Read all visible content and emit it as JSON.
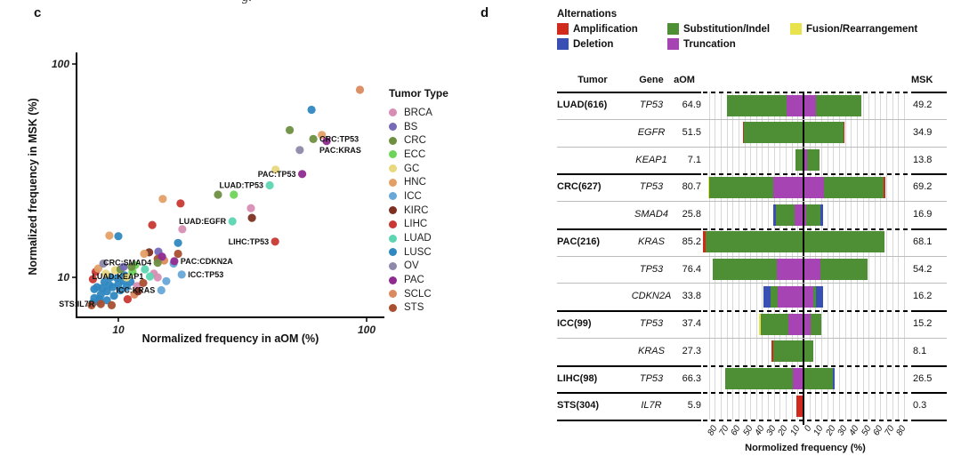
{
  "artifact": {
    "text": "g."
  },
  "panel_c": {
    "label": "c",
    "x_title": "Normalized frequency in aOM (%)",
    "y_title": "Normalized frequency in MSK (%)",
    "legend_title": "Tumor Type",
    "tumor_types": [
      {
        "name": "BRCA",
        "color": "#d88eb4"
      },
      {
        "name": "BS",
        "color": "#7569b8"
      },
      {
        "name": "CRC",
        "color": "#6e8f40"
      },
      {
        "name": "ECC",
        "color": "#6ed457"
      },
      {
        "name": "GC",
        "color": "#e9d87e"
      },
      {
        "name": "HNC",
        "color": "#e3a066"
      },
      {
        "name": "ICC",
        "color": "#68a8d8"
      },
      {
        "name": "KIRC",
        "color": "#7d3020"
      },
      {
        "name": "LIHC",
        "color": "#c93832"
      },
      {
        "name": "LUAD",
        "color": "#5cd6b2"
      },
      {
        "name": "LUSC",
        "color": "#3088c0"
      },
      {
        "name": "OV",
        "color": "#8e88ab"
      },
      {
        "name": "PAC",
        "color": "#8f2b90"
      },
      {
        "name": "SCLC",
        "color": "#db8a5e"
      },
      {
        "name": "STS",
        "color": "#a94f30"
      }
    ],
    "chart_data": {
      "type": "scatter",
      "x_scale": "log",
      "y_scale": "log",
      "x_range": [
        6.8,
        118
      ],
      "y_range": [
        6.5,
        110
      ],
      "x_ticks": [
        10,
        100
      ],
      "y_ticks": [
        100,
        10
      ],
      "grid": false,
      "legend_position": "right",
      "points": [
        {
          "tumor": "LUSC",
          "x": 8.0,
          "y": 8.0
        },
        {
          "tumor": "LUSC",
          "x": 8.5,
          "y": 8.3
        },
        {
          "tumor": "LUSC",
          "x": 9.0,
          "y": 8.6
        },
        {
          "tumor": "LUSC",
          "x": 9.5,
          "y": 9.0
        },
        {
          "tumor": "LUSC",
          "x": 10.0,
          "y": 9.3
        },
        {
          "tumor": "LUSC",
          "x": 10.5,
          "y": 9.6
        },
        {
          "tumor": "LUSC",
          "x": 8.2,
          "y": 9.0
        },
        {
          "tumor": "LUSC",
          "x": 8.8,
          "y": 9.5
        },
        {
          "tumor": "LUSC",
          "x": 9.3,
          "y": 10.0
        },
        {
          "tumor": "LUSC",
          "x": 8.0,
          "y": 8.8
        },
        {
          "tumor": "LUSC",
          "x": 8.4,
          "y": 7.9
        },
        {
          "tumor": "LUSC",
          "x": 9.0,
          "y": 7.8
        },
        {
          "tumor": "LUSC",
          "x": 9.6,
          "y": 8.2
        },
        {
          "tumor": "LUSC",
          "x": 10.2,
          "y": 8.7
        },
        {
          "tumor": "LUSC",
          "x": 10.8,
          "y": 9.0
        },
        {
          "tumor": "LUSC",
          "x": 11.2,
          "y": 9.5
        },
        {
          "tumor": "LUSC",
          "x": 8.6,
          "y": 8.9
        },
        {
          "tumor": "LUSC",
          "x": 9.2,
          "y": 9.2
        },
        {
          "tumor": "LUSC",
          "x": 9.9,
          "y": 9.9
        },
        {
          "tumor": "LUSC",
          "x": 10.6,
          "y": 10.2
        },
        {
          "tumor": "LUSC",
          "x": 7.9,
          "y": 7.6
        },
        {
          "tumor": "LUSC",
          "x": 8.3,
          "y": 7.7
        },
        {
          "tumor": "STS",
          "x": 7.8,
          "y": 7.4
        },
        {
          "tumor": "STS",
          "x": 9.4,
          "y": 7.4
        },
        {
          "tumor": "LIHC",
          "x": 8.1,
          "y": 10.6
        },
        {
          "tumor": "LIHC",
          "x": 7.9,
          "y": 9.8
        },
        {
          "tumor": "LIHC",
          "x": 10.9,
          "y": 7.9
        },
        {
          "tumor": "GC",
          "x": 9.7,
          "y": 10.8
        },
        {
          "tumor": "GC",
          "x": 8.9,
          "y": 10.4
        },
        {
          "tumor": "HNC",
          "x": 8.3,
          "y": 11.0
        },
        {
          "tumor": "SCLC",
          "x": 11.6,
          "y": 8.3
        },
        {
          "tumor": "CRC",
          "x": 10.2,
          "y": 10.9
        },
        {
          "tumor": "BRCA",
          "x": 11.9,
          "y": 9.1
        },
        {
          "tumor": "ECC",
          "x": 11.4,
          "y": 10.6
        },
        {
          "tumor": "BS",
          "x": 10.5,
          "y": 11.2
        },
        {
          "tumor": "KIRC",
          "x": 12.0,
          "y": 8.6
        },
        {
          "tumor": "STS",
          "x": 12.6,
          "y": 9.4
        },
        {
          "tumor": "SCLC",
          "x": 94,
          "y": 75.7
        },
        {
          "tumor": "LUSC",
          "x": 60,
          "y": 61
        },
        {
          "tumor": "CRC",
          "x": 49,
          "y": 49
        },
        {
          "tumor": "HNC",
          "x": 66,
          "y": 46.5
        },
        {
          "tumor": "OV",
          "x": 53.8,
          "y": 39.5
        },
        {
          "tumor": "GC",
          "x": 43,
          "y": 32
        },
        {
          "tumor": "CRC",
          "x": 25.2,
          "y": 24.4
        },
        {
          "tumor": "ECC",
          "x": 29.2,
          "y": 24.4
        },
        {
          "tumor": "HNC",
          "x": 15.1,
          "y": 23.3
        },
        {
          "tumor": "LIHC",
          "x": 17.8,
          "y": 22.2
        },
        {
          "tumor": "BRCA",
          "x": 34.2,
          "y": 21.1
        },
        {
          "tumor": "KIRC",
          "x": 34.5,
          "y": 19.0
        },
        {
          "tumor": "BRCA",
          "x": 18.1,
          "y": 16.8
        },
        {
          "tumor": "LIHC",
          "x": 13.7,
          "y": 17.6
        },
        {
          "tumor": "HNC",
          "x": 9.2,
          "y": 15.7
        },
        {
          "tumor": "LUSC",
          "x": 10.0,
          "y": 15.6
        },
        {
          "tumor": "LUSC",
          "x": 17.4,
          "y": 14.5
        },
        {
          "tumor": "BS",
          "x": 14.5,
          "y": 13.2
        },
        {
          "tumor": "KIRC",
          "x": 13.3,
          "y": 13.1
        },
        {
          "tumor": "SCLC",
          "x": 15.3,
          "y": 12.0
        },
        {
          "tumor": "STS",
          "x": 14.4,
          "y": 12.2
        },
        {
          "tumor": "ICC",
          "x": 16.7,
          "y": 11.6
        },
        {
          "tumor": "ECC",
          "x": 11.7,
          "y": 11.4
        },
        {
          "tumor": "CRC",
          "x": 11.3,
          "y": 11.2
        },
        {
          "tumor": "OV",
          "x": 8.7,
          "y": 11.6
        },
        {
          "tumor": "HNC",
          "x": 12.7,
          "y": 12.9
        },
        {
          "tumor": "BRCA",
          "x": 13.9,
          "y": 10.4
        },
        {
          "tumor": "STS",
          "x": 17.4,
          "y": 12.9
        },
        {
          "tumor": "BRCA",
          "x": 14.4,
          "y": 10.0
        },
        {
          "tumor": "ICC",
          "x": 15.6,
          "y": 9.6
        },
        {
          "tumor": "GC",
          "x": 10.8,
          "y": 10.0
        },
        {
          "tumor": "PAC",
          "x": 15.0,
          "y": 12.5
        },
        {
          "tumor": "LUAD",
          "x": 12.8,
          "y": 10.9
        },
        {
          "tumor": "CRC",
          "x": 61,
          "y": 44.5,
          "label": "CRC:TP53",
          "side": "right"
        },
        {
          "tumor": "PAC",
          "x": 69,
          "y": 43.5,
          "label": "PAC:KRAS",
          "side": "below"
        },
        {
          "tumor": "PAC",
          "x": 55,
          "y": 30.5,
          "label": "PAC:TP53",
          "side": "left"
        },
        {
          "tumor": "LUAD",
          "x": 40.7,
          "y": 27.0,
          "label": "LUAD:TP53",
          "side": "left"
        },
        {
          "tumor": "LUAD",
          "x": 28.8,
          "y": 18.3,
          "label": "LUAD:EGFR",
          "side": "left"
        },
        {
          "tumor": "LIHC",
          "x": 42.8,
          "y": 14.7,
          "label": "LIHC:TP53",
          "side": "left"
        },
        {
          "tumor": "CRC",
          "x": 14.4,
          "y": 11.7,
          "label": "CRC:SMAD4",
          "side": "left"
        },
        {
          "tumor": "PAC",
          "x": 16.8,
          "y": 11.9,
          "label": "PAC:CDKN2A",
          "side": "right"
        },
        {
          "tumor": "ICC",
          "x": 18.0,
          "y": 10.3,
          "label": "ICC:TP53",
          "side": "right"
        },
        {
          "tumor": "LUAD",
          "x": 13.4,
          "y": 10.1,
          "label": "LUAD:KEAP1",
          "side": "left"
        },
        {
          "tumor": "ICC",
          "x": 14.9,
          "y": 8.7,
          "label": "ICC:KRAS",
          "side": "left"
        },
        {
          "tumor": "STS",
          "x": 8.5,
          "y": 7.5,
          "label": "STS:IL7R",
          "side": "left"
        }
      ]
    }
  },
  "panel_d": {
    "label": "d",
    "legend_title": "Alternations",
    "alteration_types": [
      {
        "key": "amp",
        "name": "Amplification",
        "color": "#cf2a1b"
      },
      {
        "key": "sub",
        "name": "Substitution/Indel",
        "color": "#4e8f35"
      },
      {
        "key": "fus",
        "name": "Fusion/Rearrangement",
        "color": "#e8e34c"
      },
      {
        "key": "del",
        "name": "Deletion",
        "color": "#3a4fb4"
      },
      {
        "key": "trunc",
        "name": "Truncation",
        "color": "#a644b4"
      }
    ],
    "columns": {
      "tumor": "Tumor",
      "gene": "Gene",
      "aom": "aOM",
      "msk": "MSK"
    },
    "axis_title": "Normolized frequency (%)",
    "axis_ticks": [
      "80",
      "70",
      "60",
      "50",
      "40",
      "30",
      "20",
      "10",
      "0",
      "10",
      "20",
      "30",
      "40",
      "50",
      "60",
      "70",
      "80"
    ],
    "chart_data": {
      "type": "bar",
      "orientation": "mirrored-horizontal",
      "unit": "%",
      "axis_range": [
        -80,
        80
      ],
      "rows": [
        {
          "tumor": "LUAD(616)",
          "gene": "TP53",
          "aom": 64.9,
          "msk": 49.2,
          "group_start": true,
          "aom_segments": [
            {
              "t": "sub",
              "f": 0.78
            },
            {
              "t": "trunc",
              "f": 0.22
            }
          ],
          "msk_segments": [
            {
              "t": "trunc",
              "f": 0.21
            },
            {
              "t": "sub",
              "f": 0.79
            }
          ]
        },
        {
          "tumor": "",
          "gene": "EGFR",
          "aom": 51.5,
          "msk": 34.9,
          "group_start": false,
          "aom_segments": [
            {
              "t": "amp",
              "f": 0.02
            },
            {
              "t": "sub",
              "f": 0.98
            }
          ],
          "msk_segments": [
            {
              "t": "sub",
              "f": 0.97
            },
            {
              "t": "amp",
              "f": 0.03
            }
          ]
        },
        {
          "tumor": "",
          "gene": "KEAP1",
          "aom": 7.1,
          "msk": 13.8,
          "group_start": false,
          "aom_segments": [
            {
              "t": "sub",
              "f": 1.0
            }
          ],
          "msk_segments": [
            {
              "t": "trunc",
              "f": 0.2
            },
            {
              "t": "sub",
              "f": 0.8
            }
          ]
        },
        {
          "tumor": "CRC(627)",
          "gene": "TP53",
          "aom": 80.7,
          "msk": 69.2,
          "group_start": true,
          "aom_segments": [
            {
              "t": "fus",
              "f": 0.012
            },
            {
              "t": "sub",
              "f": 0.668
            },
            {
              "t": "trunc",
              "f": 0.32
            }
          ],
          "msk_segments": [
            {
              "t": "trunc",
              "f": 0.25
            },
            {
              "t": "sub",
              "f": 0.73
            },
            {
              "t": "amp",
              "f": 0.02
            }
          ]
        },
        {
          "tumor": "",
          "gene": "SMAD4",
          "aom": 25.8,
          "msk": 16.9,
          "group_start": false,
          "aom_segments": [
            {
              "t": "del",
              "f": 0.09
            },
            {
              "t": "sub",
              "f": 0.61
            },
            {
              "t": "trunc",
              "f": 0.3
            }
          ],
          "msk_segments": [
            {
              "t": "trunc",
              "f": 0.12
            },
            {
              "t": "sub",
              "f": 0.73
            },
            {
              "t": "del",
              "f": 0.15
            }
          ]
        },
        {
          "tumor": "PAC(216)",
          "gene": "KRAS",
          "aom": 85.2,
          "msk": 68.1,
          "group_start": true,
          "aom_segments": [
            {
              "t": "amp",
              "f": 0.025
            },
            {
              "t": "sub",
              "f": 0.975
            }
          ],
          "msk_segments": [
            {
              "t": "sub",
              "f": 1.0
            }
          ]
        },
        {
          "tumor": "",
          "gene": "TP53",
          "aom": 76.4,
          "msk": 54.2,
          "group_start": false,
          "aom_segments": [
            {
              "t": "sub",
              "f": 0.7
            },
            {
              "t": "trunc",
              "f": 0.3
            }
          ],
          "msk_segments": [
            {
              "t": "trunc",
              "f": 0.27
            },
            {
              "t": "sub",
              "f": 0.73
            }
          ]
        },
        {
          "tumor": "",
          "gene": "CDKN2A",
          "aom": 33.8,
          "msk": 16.2,
          "group_start": false,
          "aom_segments": [
            {
              "t": "del",
              "f": 0.17
            },
            {
              "t": "sub",
              "f": 0.19
            },
            {
              "t": "trunc",
              "f": 0.64
            }
          ],
          "msk_segments": [
            {
              "t": "trunc",
              "f": 0.5
            },
            {
              "t": "sub",
              "f": 0.14
            },
            {
              "t": "del",
              "f": 0.36
            }
          ]
        },
        {
          "tumor": "ICC(99)",
          "gene": "TP53",
          "aom": 37.4,
          "msk": 15.2,
          "group_start": true,
          "aom_segments": [
            {
              "t": "fus",
              "f": 0.035
            },
            {
              "t": "sub",
              "f": 0.625
            },
            {
              "t": "trunc",
              "f": 0.34
            }
          ],
          "msk_segments": [
            {
              "t": "trunc",
              "f": 0.42
            },
            {
              "t": "sub",
              "f": 0.58
            }
          ]
        },
        {
          "tumor": "",
          "gene": "KRAS",
          "aom": 27.3,
          "msk": 8.1,
          "group_start": false,
          "aom_segments": [
            {
              "t": "amp",
              "f": 0.05
            },
            {
              "t": "sub",
              "f": 0.95
            }
          ],
          "msk_segments": [
            {
              "t": "sub",
              "f": 1.0
            }
          ]
        },
        {
          "tumor": "LIHC(98)",
          "gene": "TP53",
          "aom": 66.3,
          "msk": 26.5,
          "group_start": true,
          "aom_segments": [
            {
              "t": "sub",
              "f": 0.865
            },
            {
              "t": "trunc",
              "f": 0.135
            }
          ],
          "msk_segments": [
            {
              "t": "sub",
              "f": 0.93
            },
            {
              "t": "del",
              "f": 0.07
            }
          ]
        },
        {
          "tumor": "STS(304)",
          "gene": "IL7R",
          "aom": 5.9,
          "msk": 0.3,
          "group_start": true,
          "aom_segments": [
            {
              "t": "amp",
              "f": 1.0
            }
          ],
          "msk_segments": [
            {
              "t": "amp",
              "f": 1.0
            }
          ]
        }
      ]
    }
  }
}
